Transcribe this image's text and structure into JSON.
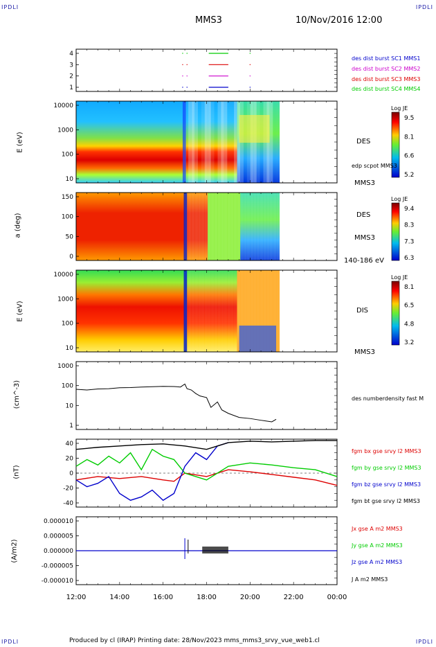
{
  "corners": {
    "tl": "IPDLI",
    "tr": "IPDLI",
    "bl": "IPDLI",
    "br": "IPDLI"
  },
  "header": {
    "spacecraft": "MMS3",
    "datetime": "10/Nov/2016 12:00"
  },
  "footer": {
    "text": "Produced by cl (IRAP)   Printing date: 28/Nov/2023   mms_mms3_srvy_vue_web1.cl"
  },
  "colors": {
    "blue": "#0000cc",
    "magenta": "#cc00cc",
    "red": "#dd0000",
    "green": "#00cc00",
    "black": "#000000"
  },
  "chart_data": [
    {
      "type": "scatter",
      "name": "burst-availability",
      "yticks": [
        "4",
        "3",
        "2",
        "1"
      ],
      "legend": [
        {
          "label": "des dist burst SC1 MMS1",
          "color": "#0000cc"
        },
        {
          "label": "des dist burst SC2 MMS2",
          "color": "#cc00cc"
        },
        {
          "label": "des dist burst SC3 MMS3",
          "color": "#dd0000"
        },
        {
          "label": "des dist burst SC4 MMS4",
          "color": "#00cc00"
        }
      ]
    },
    {
      "type": "heatmap",
      "name": "des-energy-spectrogram",
      "ylabel": "E (eV)",
      "yticks": [
        "10000",
        "1000",
        "100",
        "10"
      ],
      "instrument": "DES",
      "overlay": "edp scpot MMS3",
      "sc": "MMS3",
      "colorbar": {
        "title": "Log JE",
        "ticks": [
          "9.5",
          "8.1",
          "6.6",
          "5.2"
        ]
      }
    },
    {
      "type": "heatmap",
      "name": "des-pitch-angle",
      "ylabel": "a (deg)",
      "yticks": [
        "150",
        "100",
        "50",
        "0"
      ],
      "instrument": "DES",
      "sc": "MMS3",
      "energy_range": "140-186 eV",
      "colorbar": {
        "title": "Log JE",
        "ticks": [
          "9.4",
          "8.3",
          "7.3",
          "6.3"
        ]
      }
    },
    {
      "type": "heatmap",
      "name": "dis-energy-spectrogram",
      "ylabel": "E (eV)",
      "yticks": [
        "10000",
        "1000",
        "100",
        "10"
      ],
      "instrument": "DIS",
      "sc": "MMS3",
      "colorbar": {
        "title": "Log JE",
        "ticks": [
          "8.1",
          "6.5",
          "4.8",
          "3.2"
        ]
      }
    },
    {
      "type": "line",
      "name": "density",
      "ylabel": "(cm^-3)",
      "yscale": "log",
      "yticks": [
        "1000",
        "100",
        "10",
        "1"
      ],
      "series": [
        {
          "name": "des numberdensity fast M",
          "color": "#000000",
          "x": [
            12.0,
            12.5,
            13.0,
            13.5,
            14.0,
            14.5,
            15.0,
            15.5,
            16.0,
            16.5,
            16.8,
            17.0,
            17.1,
            17.3,
            17.5,
            17.7,
            18.0,
            18.2,
            18.5,
            18.7,
            19.0,
            19.5,
            20.0,
            20.5,
            21.0,
            21.2
          ],
          "y": [
            65,
            60,
            68,
            70,
            78,
            80,
            85,
            88,
            92,
            90,
            85,
            120,
            70,
            60,
            40,
            30,
            25,
            8,
            15,
            6,
            4,
            2.5,
            2.2,
            1.8,
            1.5,
            2.0
          ]
        }
      ]
    },
    {
      "type": "line",
      "name": "magnetic-field",
      "ylabel": "(nT)",
      "ylim": [
        -50,
        50
      ],
      "yticks": [
        "40",
        "20",
        "0",
        "-20",
        "-40"
      ],
      "series": [
        {
          "name": "fgm bx gse srvy l2 MMS3",
          "color": "#dd0000",
          "x": [
            12.0,
            13.0,
            14.0,
            15.0,
            16.0,
            16.5,
            17.0,
            18.0,
            19.0,
            20.0,
            21.0,
            22.0,
            23.0,
            24.0
          ],
          "y": [
            -10,
            -5,
            -8,
            -5,
            -10,
            -12,
            0,
            -5,
            5,
            2,
            -2,
            -6,
            -10,
            -18
          ]
        },
        {
          "name": "fgm by gse srvy l2 MMS3",
          "color": "#00cc00",
          "x": [
            12.0,
            12.5,
            13.0,
            13.5,
            14.0,
            14.5,
            15.0,
            15.5,
            16.0,
            16.5,
            17.0,
            18.0,
            19.0,
            20.0,
            21.0,
            22.0,
            23.0,
            24.0
          ],
          "y": [
            10,
            20,
            12,
            25,
            15,
            30,
            5,
            35,
            25,
            20,
            0,
            -10,
            10,
            15,
            12,
            8,
            5,
            -5
          ]
        },
        {
          "name": "fgm bz gse srvy l2 MMS3",
          "color": "#0000cc",
          "x": [
            12.0,
            12.5,
            13.0,
            13.5,
            14.0,
            14.5,
            15.0,
            15.5,
            16.0,
            16.5,
            17.0,
            17.5,
            18.0,
            18.5,
            19.0
          ],
          "y": [
            -10,
            -20,
            -15,
            -5,
            -30,
            -40,
            -35,
            -25,
            -40,
            -30,
            10,
            30,
            20,
            40,
            45
          ]
        },
        {
          "name": "fgm bt gse srvy l2 MMS3",
          "color": "#000000",
          "x": [
            12.0,
            13.0,
            14.0,
            15.0,
            16.0,
            17.0,
            18.0,
            19.0,
            20.0,
            21.0,
            22.0,
            23.0,
            24.0
          ],
          "y": [
            35,
            38,
            40,
            42,
            43,
            40,
            35,
            45,
            47,
            46,
            47,
            48,
            48
          ]
        }
      ]
    },
    {
      "type": "line",
      "name": "current-density",
      "ylabel": "(A/m2)",
      "yticks": [
        "0.000010",
        "0.000005",
        "0.000000",
        "-0.000005",
        "-0.000010"
      ],
      "series": [
        {
          "name": "Jx gse A m2 MMS3",
          "color": "#dd0000"
        },
        {
          "name": "Jy gse A m2 MMS3",
          "color": "#00cc00"
        },
        {
          "name": "Jz gse A m2 MMS3",
          "color": "#0000cc"
        },
        {
          "name": "J A m2 MMS3",
          "color": "#000000"
        }
      ]
    }
  ],
  "xaxis": {
    "ticks": [
      "12:00",
      "14:00",
      "16:00",
      "18:00",
      "20:00",
      "22:00",
      "00:00"
    ]
  }
}
